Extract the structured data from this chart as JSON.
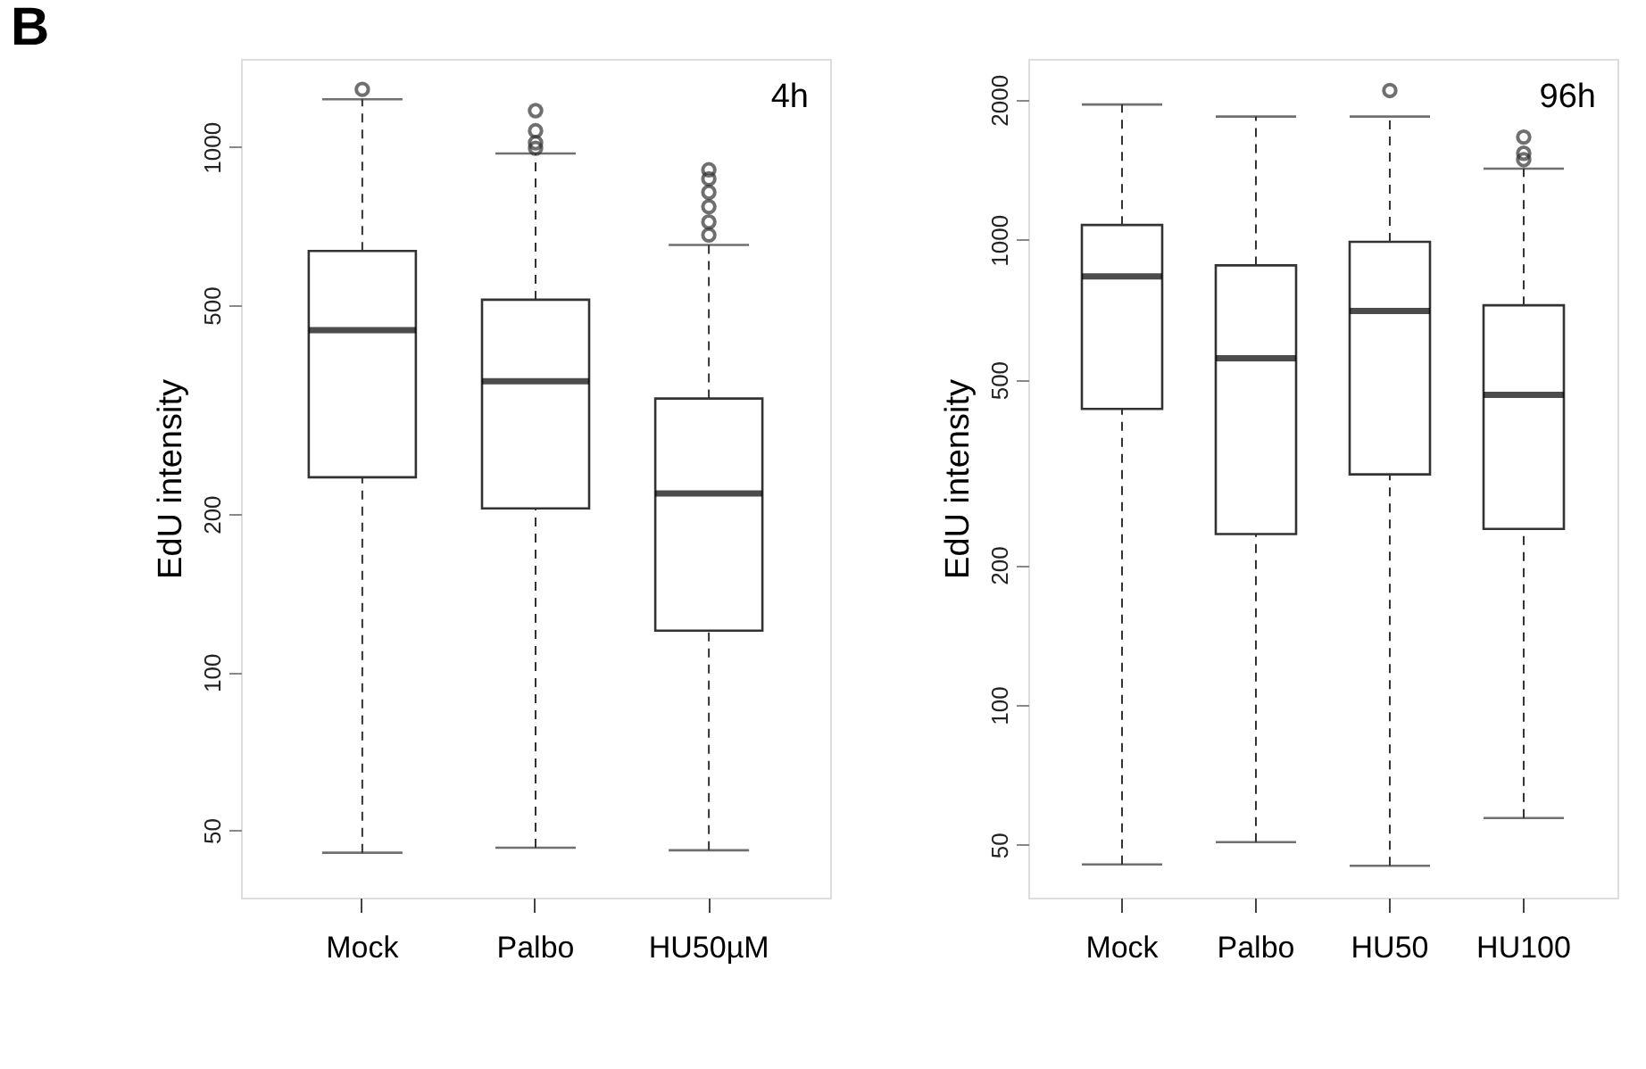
{
  "chart_data": [
    {
      "type": "box",
      "title": "B",
      "ylabel": "EdU intensity",
      "annotations": [
        "4h"
      ],
      "categories": [
        "Mock",
        "Palbo",
        "HU50µM"
      ],
      "log": true,
      "grid": false,
      "ylim": [
        37.2,
        1472
      ],
      "yticks": [
        50,
        100,
        200,
        500,
        1000
      ],
      "boxes": [
        {
          "low": 45.3,
          "q1": 235,
          "median": 448,
          "q3": 634,
          "high": 1233,
          "outliers": [
            1288
          ]
        },
        {
          "low": 46.3,
          "q1": 205,
          "median": 358,
          "q3": 512,
          "high": 972,
          "outliers": [
            995,
            1019,
            1074,
            1173
          ]
        },
        {
          "low": 45.8,
          "q1": 120,
          "median": 219,
          "q3": 332,
          "high": 651,
          "outliers": [
            680,
            720,
            770,
            820,
            870,
            905
          ]
        }
      ]
    },
    {
      "type": "box",
      "ylabel": "EdU intensity",
      "annotations": [
        "96h"
      ],
      "categories": [
        "Mock",
        "Palbo",
        "HU50",
        "HU100"
      ],
      "log": true,
      "grid": false,
      "ylim": [
        38.5,
        2449
      ],
      "yticks": [
        50,
        100,
        200,
        500,
        1000,
        2000
      ],
      "boxes": [
        {
          "low": 45.4,
          "q1": 433,
          "median": 834,
          "q3": 1076,
          "high": 1954
        },
        {
          "low": 50.7,
          "q1": 233,
          "median": 556,
          "q3": 881,
          "high": 1841
        },
        {
          "low": 45.1,
          "q1": 313,
          "median": 703,
          "q3": 990,
          "high": 1841,
          "outliers": [
            2094
          ]
        },
        {
          "low": 57.1,
          "q1": 239,
          "median": 464,
          "q3": 723,
          "high": 1422,
          "outliers": [
            1487,
            1535,
            1663
          ]
        }
      ]
    }
  ]
}
